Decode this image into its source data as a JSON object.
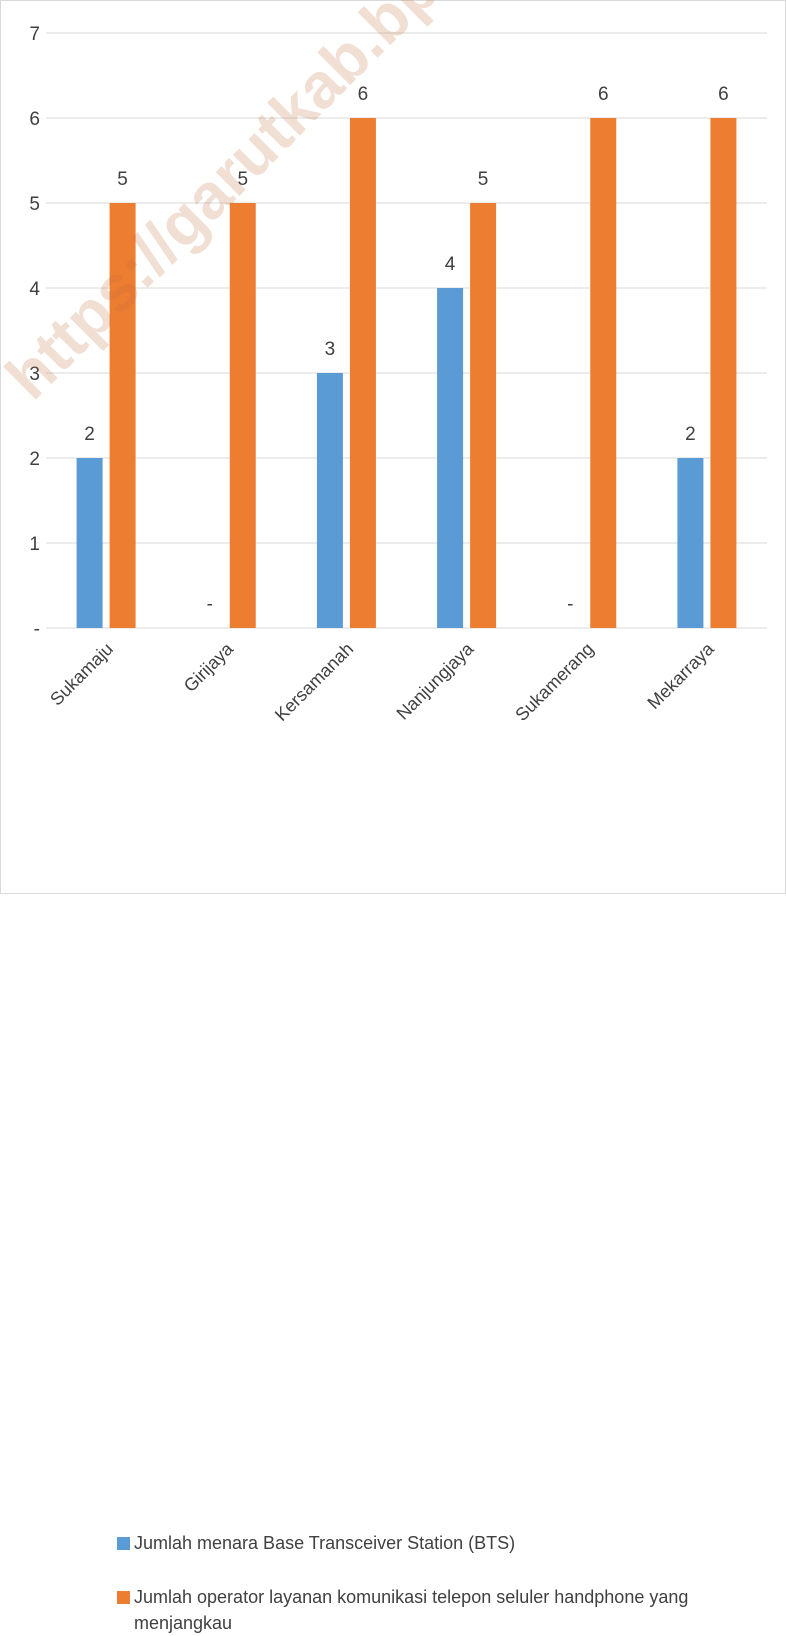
{
  "chart_data": {
    "type": "bar",
    "categories": [
      "Sukamaju",
      "Girijaya",
      "Kersamanah",
      "Nanjungjaya",
      "Sukamerang",
      "Mekarraya"
    ],
    "series": [
      {
        "name": "Jumlah menara Base Transceiver Station (BTS)",
        "values": [
          2,
          0,
          3,
          4,
          0,
          2
        ],
        "labels": [
          "2",
          "-",
          "3",
          "4",
          "-",
          "2"
        ],
        "color": "#5b9bd5"
      },
      {
        "name": "Jumlah operator layanan komunikasi telepon seluler  handphone yang menjangkau",
        "values": [
          5,
          5,
          6,
          5,
          6,
          6
        ],
        "labels": [
          "5",
          "5",
          "6",
          "5",
          "6",
          "6"
        ],
        "color": "#ed7d31"
      }
    ],
    "ylim": [
      0,
      7
    ],
    "yticks": [
      "-",
      "1",
      "2",
      "3",
      "4",
      "5",
      "6",
      "7"
    ],
    "grid": true,
    "legend_position": "bottom",
    "title": "",
    "xlabel": "",
    "ylabel": ""
  },
  "watermark": "https://garutkab.bps.go.id"
}
